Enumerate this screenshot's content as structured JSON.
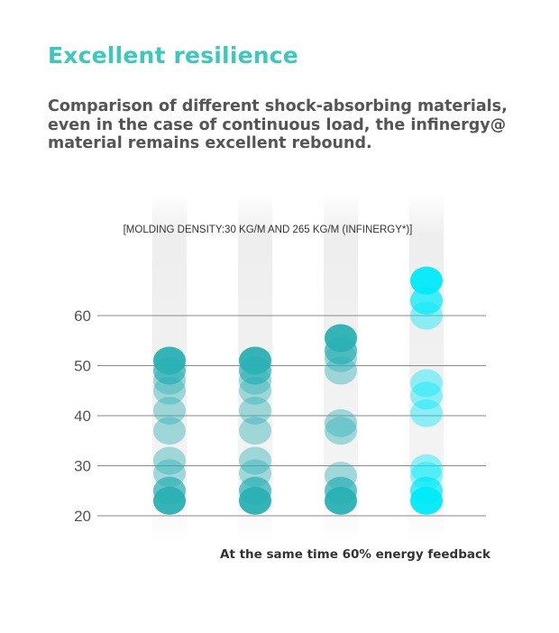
{
  "header": {
    "title": "Excellent resilience",
    "description_lines": [
      "Comparison of different shock-absorbing materials,",
      "even in the case of continuous load, the infinergy@",
      "material remains excellent rebound."
    ]
  },
  "chart_data": {
    "type": "scatter",
    "annotation": "[MOLDING DENSITY:30 KG/M AND 265 KG/M (INFINERGY*)]",
    "ylabel": "",
    "xlabel": "",
    "yticks": [
      20,
      30,
      40,
      50,
      60
    ],
    "ylim": [
      19,
      69
    ],
    "grid": true,
    "columns": [
      {
        "color": "#2ab0b4",
        "values": [
          23,
          25,
          28.5,
          31,
          37,
          41,
          45,
          47,
          49,
          51
        ]
      },
      {
        "color": "#2ab0b4",
        "values": [
          23,
          25,
          28.5,
          31,
          37,
          41,
          45,
          47,
          49,
          51
        ]
      },
      {
        "color": "#2ab0b4",
        "values": [
          23,
          25,
          28,
          37,
          38.5,
          49,
          51.5,
          53,
          55.5
        ]
      },
      {
        "color": "#00eaf8",
        "values": [
          23,
          25,
          28,
          29.5,
          40.5,
          44,
          46.5,
          60,
          63,
          67
        ]
      }
    ]
  },
  "footer": {
    "caption": "At the same time 60% energy feedback"
  },
  "colors": {
    "title": "#3cc9bb",
    "body_text": "#555555",
    "grid": "#8a8a8a"
  }
}
